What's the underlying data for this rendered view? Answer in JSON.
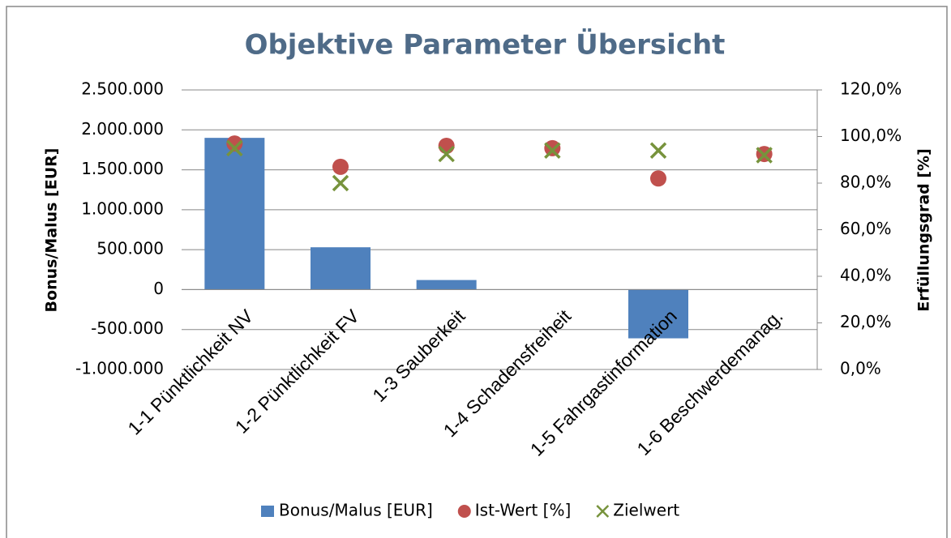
{
  "chart_data": {
    "type": "bar-scatter",
    "title": "Objektive Parameter Übersicht",
    "y_label": "Bonus/Malus [EUR]",
    "y2_label": "Erfüllungsgrad [%]",
    "categories": [
      "1-1 Pünktlichkeit NV",
      "1-2 Pünktlichkeit FV",
      "1-3 Sauberkeit",
      "1-4 Schadensfreiheit",
      "1-5 Fahrgastinformation",
      "1-6 Beschwerdemanag."
    ],
    "series": [
      {
        "name": "Bonus/Malus [EUR]",
        "type": "bar",
        "color": "#4f81bd",
        "values": [
          1900000,
          530000,
          120000,
          0,
          -610000,
          0
        ]
      },
      {
        "name": "Ist-Wert [%]",
        "type": "scatter",
        "marker": "circle",
        "axis": "y2",
        "color": "#c0504d",
        "values": [
          97,
          87,
          96,
          95,
          82,
          92.5
        ]
      },
      {
        "name": "Zielwert",
        "type": "scatter",
        "marker": "x",
        "axis": "y2",
        "color": "#77933c",
        "values": [
          95,
          80,
          92.5,
          94,
          94,
          92
        ]
      }
    ],
    "ylim": [
      -1000000,
      2500000
    ],
    "yticks": [
      {
        "value": -1000000,
        "label": "-1.000.000"
      },
      {
        "value": -500000,
        "label": "-500.000"
      },
      0,
      {
        "value": 500000,
        "label": "500.000"
      },
      {
        "value": 1000000,
        "label": "1.000.000"
      },
      {
        "value": 1500000,
        "label": "1.500.000"
      },
      {
        "value": 2000000,
        "label": "2.000.000"
      },
      {
        "value": 2500000,
        "label": "2.500.000"
      }
    ],
    "y2lim": [
      0,
      120
    ],
    "y2ticks": [
      {
        "value": 0,
        "label": "0,0%"
      },
      {
        "value": 20,
        "label": "20,0%"
      },
      {
        "value": 40,
        "label": "40,0%"
      },
      {
        "value": 60,
        "label": "60,0%"
      },
      {
        "value": 80,
        "label": "80,0%"
      },
      {
        "value": 100,
        "label": "100,0%"
      },
      {
        "value": 120,
        "label": "120,0%"
      }
    ],
    "grid": true,
    "legend": "bottom"
  }
}
